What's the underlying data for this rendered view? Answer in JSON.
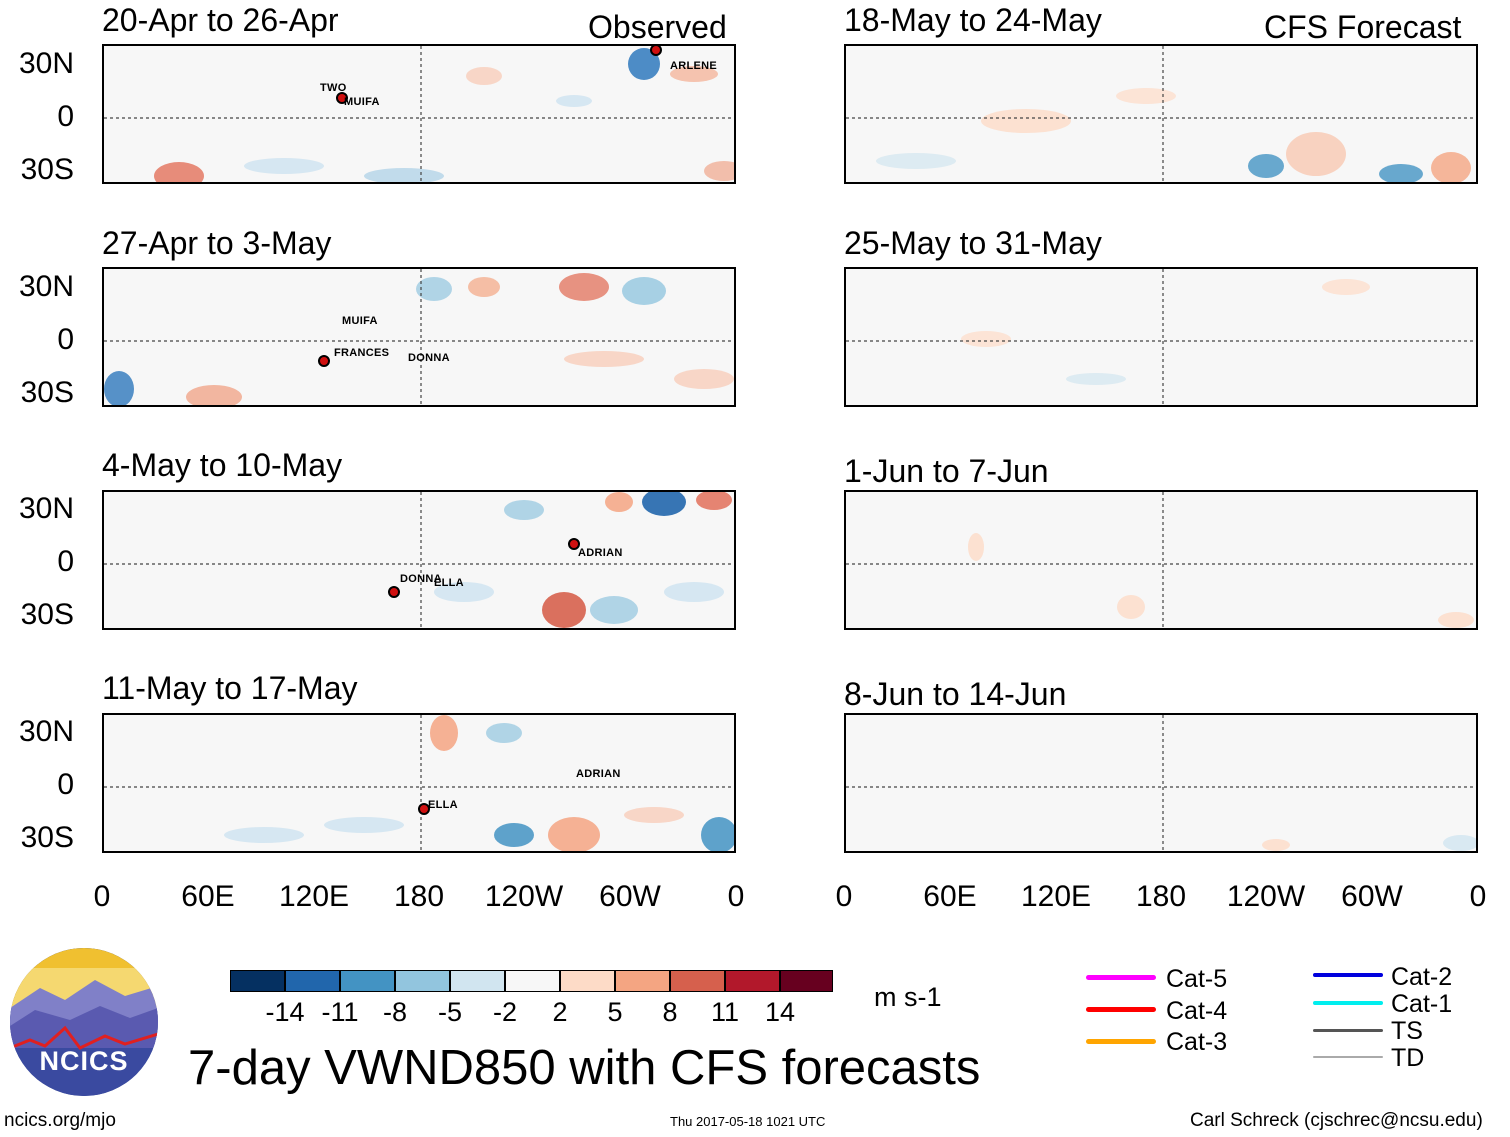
{
  "columns": {
    "left_header": "Observed",
    "right_header": "CFS Forecast"
  },
  "left_panels": [
    {
      "title": "20-Apr to 26-Apr",
      "storms": [
        "TWO",
        "MUIFA",
        "ARLENE"
      ]
    },
    {
      "title": "27-Apr to 3-May",
      "storms": [
        "MUIFA",
        "FRANCES",
        "DONNA"
      ]
    },
    {
      "title": "4-May to 10-May",
      "storms": [
        "ADRIAN",
        "DONNA",
        "ELLA"
      ]
    },
    {
      "title": "11-May to 17-May",
      "storms": [
        "ADRIAN",
        "ELLA"
      ]
    }
  ],
  "right_panels": [
    {
      "title": "18-May to 24-May"
    },
    {
      "title": "25-May to 31-May"
    },
    {
      "title": "1-Jun to 7-Jun"
    },
    {
      "title": "8-Jun to 14-Jun"
    }
  ],
  "y_ticks": [
    "30N",
    "0",
    "30S"
  ],
  "x_ticks": [
    "0",
    "60E",
    "120E",
    "180",
    "120W",
    "60W",
    "0"
  ],
  "colorbar": {
    "labels": [
      "-14",
      "-11",
      "-8",
      "-5",
      "-2",
      "2",
      "5",
      "8",
      "11",
      "14"
    ],
    "colors": [
      "#053061",
      "#2166ac",
      "#4393c3",
      "#92c5de",
      "#d1e5f0",
      "#f7f7f7",
      "#fddbc7",
      "#f4a582",
      "#d6604d",
      "#b2182b",
      "#67001f"
    ],
    "units": "m s-1"
  },
  "legend": {
    "left": [
      {
        "label": "Cat-5",
        "color": "#ff00ff"
      },
      {
        "label": "Cat-4",
        "color": "#ff0000"
      },
      {
        "label": "Cat-3",
        "color": "#ffa500"
      }
    ],
    "right": [
      {
        "label": "Cat-2",
        "color": "#0000dd"
      },
      {
        "label": "Cat-1",
        "color": "#00eeee"
      },
      {
        "label": "TS",
        "color": "#555555"
      },
      {
        "label": "TD",
        "color": "#aaaaaa"
      }
    ]
  },
  "logo_text": "NCICS",
  "main_title": "7-day VWND850 with CFS forecasts",
  "footer": {
    "url": "ncics.org/mjo",
    "timestamp": "Thu 2017-05-18 1021 UTC",
    "author": "Carl Schreck (cjschrec@ncsu.edu)"
  }
}
